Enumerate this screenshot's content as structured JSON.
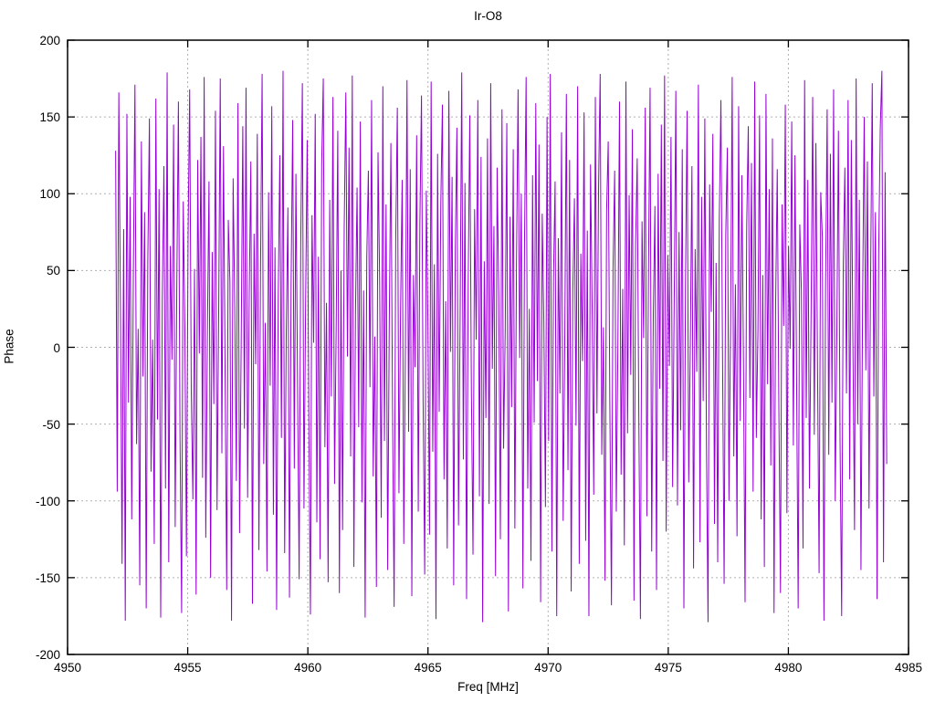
{
  "chart_data": {
    "type": "line",
    "title": "Ir-O8",
    "xlabel": "Freq [MHz]",
    "ylabel": "Phase",
    "xlim": [
      4950,
      4985
    ],
    "ylim": [
      -200,
      200
    ],
    "x_ticks": [
      4950,
      4955,
      4960,
      4965,
      4970,
      4975,
      4980,
      4985
    ],
    "y_ticks": [
      200,
      150,
      100,
      50,
      0,
      -50,
      -100,
      -150,
      -200
    ],
    "grid": true,
    "legend": "none",
    "line_color": "#9400d3",
    "grid_color": "#b0b0b0",
    "series": [
      {
        "name": "Phase",
        "x_start": 4952.0,
        "x_step": 0.067,
        "values": [
          128,
          -94,
          166,
          23,
          -141,
          77,
          -178,
          152,
          -36,
          98,
          -112,
          45,
          171,
          -63,
          12,
          -155,
          134,
          -19,
          88,
          -170,
          57,
          149,
          -81,
          5,
          -128,
          162,
          -47,
          103,
          -176,
          31,
          118,
          -92,
          179,
          -140,
          66,
          -8,
          145,
          -117,
          39,
          160,
          -58,
          -173,
          95,
          14,
          -136,
          72,
          168,
          -29,
          -99,
          51,
          -161,
          122,
          -4,
          137,
          -85,
          176,
          -124,
          8,
          108,
          -150,
          62,
          -37,
          154,
          -106,
          19,
          175,
          -69,
          131,
          -16,
          -158,
          83,
          43,
          -178,
          110,
          27,
          -87,
          159,
          -121,
          2,
          144,
          -53,
          169,
          -98,
          35,
          121,
          -167,
          74,
          -11,
          139,
          -132,
          48,
          178,
          -76,
          16,
          -146,
          101,
          -25,
          157,
          -109,
          65,
          -171,
          33,
          125,
          -59,
          180,
          -134,
          9,
          91,
          -163,
          41,
          148,
          -79,
          113,
          -21,
          -151,
          68,
          172,
          -105,
          26,
          135,
          -44,
          -174,
          86,
          3,
          152,
          -114,
          59,
          -138,
          119,
          175,
          -65,
          29,
          -153,
          96,
          -32,
          163,
          -89,
          11,
          141,
          -160,
          50,
          -119,
          78,
          166,
          -6,
          130,
          -71,
          177,
          -143,
          22,
          104,
          -52,
          147,
          -101,
          37,
          -176,
          58,
          115,
          -26,
          161,
          -84,
          7,
          -156,
          127,
          44,
          -111,
          170,
          -61,
          93,
          -145,
          18,
          133,
          -38,
          -169,
          70,
          156,
          -95,
          24,
          109,
          -128,
          1,
          174,
          -55,
          116,
          -162,
          47,
          -13,
          138,
          -107,
          81,
          164,
          -34,
          -148,
          102,
          15,
          -122,
          173,
          -68,
          54,
          -177,
          126,
          -42,
          94,
          158,
          -86,
          30,
          -131,
          167,
          -3,
          111,
          -155,
          63,
          143,
          -116,
          20,
          179,
          -73,
          107,
          -164,
          40,
          151,
          -28,
          -135,
          90,
          5,
          161,
          -97,
          124,
          -179,
          56,
          -46,
          136,
          -102,
          172,
          -14,
          79,
          -149,
          117,
          34,
          -125,
          155,
          -66,
          10,
          146,
          -172,
          85,
          -39,
          129,
          -118,
          53,
          168,
          -7,
          100,
          -157,
          69,
          176,
          -92,
          25,
          -139,
          112,
          -49,
          159,
          -22,
          132,
          -166,
          87,
          17,
          -104,
          150,
          -61,
          178,
          -133,
          45,
          108,
          -175,
          71,
          -30,
          140,
          -113,
          4,
          165,
          -80,
          122,
          -159,
          36,
          97,
          -51,
          170,
          -141,
          61,
          -9,
          153,
          -126,
          76,
          -175,
          119,
          28,
          -96,
          163,
          -43,
          105,
          178,
          -70,
          13,
          -152,
          89,
          134,
          -37,
          -168,
          52,
          115,
          -107,
          0,
          160,
          -83,
          38,
          -129,
          173,
          -56,
          99,
          -18,
          142,
          -165,
          67,
          123,
          -45,
          -177,
          82,
          6,
          156,
          -110,
          49,
          169,
          -133,
          21,
          92,
          -158,
          113,
          -27,
          145,
          -74,
          177,
          -120,
          60,
          -12,
          137,
          -91,
          32,
          167,
          -103,
          75,
          -54,
          129,
          -170,
          42,
          154,
          -88,
          2,
          118,
          -144,
          64,
          -16,
          171,
          -127,
          98,
          -35,
          149,
          -62,
          -179,
          106,
          23,
          139,
          -115,
          55,
          -140,
          84,
          161,
          -5,
          -154,
          73,
          130,
          -100,
          16,
          176,
          -71,
          41,
          -123,
          157,
          -48,
          112,
          -8,
          -166,
          78,
          144,
          -33,
          120,
          -94,
          173,
          -59,
          10,
          151,
          -112,
          47,
          -143,
          165,
          -24,
          103,
          -77,
          136,
          -173,
          29,
          116,
          -40,
          -160,
          93,
          14,
          158,
          -108,
          66,
          -1,
          147,
          -64,
          125,
          -19,
          -170,
          80,
          36,
          -131,
          174,
          -46,
          109,
          -92,
          19,
          163,
          -57,
          133,
          -11,
          -147,
          101,
          72,
          -178,
          38,
          155,
          -70,
          126,
          -36,
          168,
          -100,
          8,
          141,
          -60,
          -175,
          54,
          117,
          -30,
          161,
          -86,
          135,
          3,
          -119,
          175,
          -50,
          96,
          -145,
          27,
          150,
          -15,
          121,
          -105,
          48,
          172,
          -32,
          88,
          -164,
          61,
          143,
          180,
          -140,
          114,
          -76
        ]
      }
    ]
  }
}
